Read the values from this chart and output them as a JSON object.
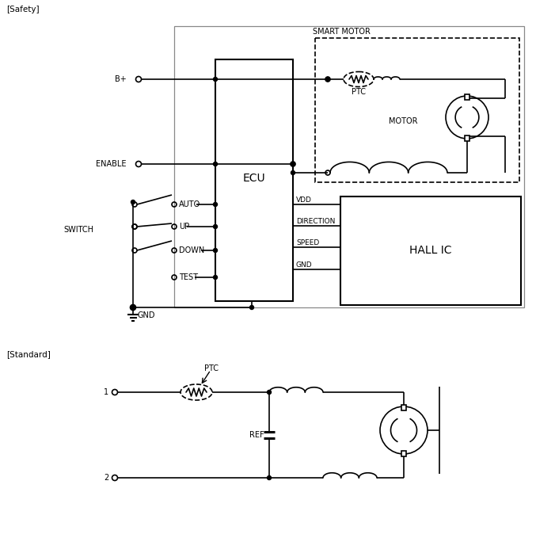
{
  "bg_color": "#ffffff",
  "line_color": "#000000",
  "line_width": 1.2,
  "font_family": "Arial",
  "safety_label": "[Safety]",
  "standard_label": "[Standard]",
  "smart_motor_label": "SMART MOTOR",
  "ecu_label": "ECU",
  "hall_ic_label": "HALL IC",
  "motor_label": "MOTOR",
  "ptc_label": "PTC",
  "ptc_label2": "PTC",
  "ref_label": "REF",
  "b_plus_label": "B+",
  "enable_label": "ENABLE",
  "switch_label": "SWITCH",
  "auto_label": "AUTO",
  "up_label": "UP",
  "down_label": "DOWN",
  "test_label": "TEST",
  "gnd_label": "GND",
  "vdd_label": "VDD",
  "direction_label": "DIRECTION",
  "speed_label": "SPEED",
  "gnd2_label": "GND",
  "label1": "1",
  "label2": "2"
}
